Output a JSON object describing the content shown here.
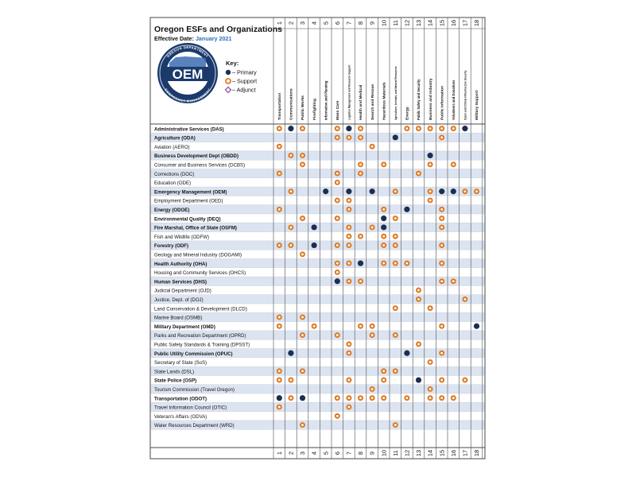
{
  "title": "Oregon ESFs and Organizations",
  "effective_label": "Effective Date:",
  "effective_date": "January 2021",
  "logo": {
    "arc_top": "OREGON DEPARTMENT",
    "arc_bottom": "EMERGENCY MANAGEMENT",
    "wordmark": "OEM"
  },
  "key": {
    "title": "Key:",
    "primary": "– Primary",
    "support": "– Support",
    "adjunct": "– Adjunct"
  },
  "colors": {
    "primary": "#1b2f52",
    "support": "#e07b22",
    "adjunct": "#9b59b6",
    "stripe": "#dce4f1",
    "grid": "#4a4a4a"
  },
  "esf_numbers": [
    "1",
    "2",
    "3",
    "4",
    "5",
    "6",
    "7",
    "8",
    "9",
    "10",
    "11",
    "12",
    "13",
    "14",
    "15",
    "16",
    "17",
    "18"
  ],
  "esf_names": [
    "Transportation",
    "Communications",
    "Public Works",
    "Firefighting",
    "Information and Planning",
    "Mass Care",
    "Logistics Management and Resource Support",
    "Health and Medical",
    "Search and Rescue",
    "Hazardous Materials",
    "Agriculture, Animals, and Natural Resources",
    "Energy",
    "Public Safety and Security",
    "Business and Industry",
    "Public Information",
    "Volunteers and Donations",
    "Cyber and Critical Infrastructure Security",
    "Military Support"
  ],
  "organizations": [
    {
      "name": "Administrative Services (DAS)",
      "bold": true,
      "marks": "S P S . . S P S . . . S S S S S P ."
    },
    {
      "name": "Agriculture (ODA)",
      "bold": true,
      "marks": ". . . . . S S S . . P . . . S . . ."
    },
    {
      "name": "Aviation (AERO)",
      "bold": false,
      "marks": "S . . . . . . . S . . . . . . . . ."
    },
    {
      "name": "Business Development Dept (OBDD)",
      "bold": true,
      "marks": ". S S . . . . . . . . . . P . . . ."
    },
    {
      "name": "Consumer and Business Services (DCBS)",
      "bold": false,
      "marks": ". . S . . . . S . S . . . S . S . ."
    },
    {
      "name": "Corrections (DOC)",
      "bold": false,
      "marks": "S . . . . S . S . . . . S . . . . ."
    },
    {
      "name": "Education (ODE)",
      "bold": false,
      "marks": ". . . . . S . . . . . . . . . . . ."
    },
    {
      "name": "Emergency Management (OEM)",
      "bold": true,
      "marks": ". S . . P . P . P . S . . S P P S S"
    },
    {
      "name": "Employment Department (OED)",
      "bold": false,
      "marks": ". . . . . S S . . . . . . S . . . ."
    },
    {
      "name": "Energy (ODOE)",
      "bold": true,
      "marks": "S . . . . . S . . S . P . . S . . ."
    },
    {
      "name": "Environmental Quality (DEQ)",
      "bold": true,
      "marks": ". . S . . S . . . P S . . . S . . ."
    },
    {
      "name": "Fire Marshal, Office of State (OSFM)",
      "bold": true,
      "marks": ". S . P . . S . S P . . . . S . . ."
    },
    {
      "name": "Fish and Wildlife (ODFW)",
      "bold": false,
      "marks": ". . . . . . S S . S S . . . . . . ."
    },
    {
      "name": "Forestry (ODF)",
      "bold": true,
      "marks": "S S . P . S S . . S S . . . S . . ."
    },
    {
      "name": "Geology and Mineral Industry (DOGAMI)",
      "bold": false,
      "marks": ". . S . . . . . . . . . . . . . . ."
    },
    {
      "name": "Health Authority (OHA)",
      "bold": true,
      "marks": ". . . . . S S P . S S S . . S . . ."
    },
    {
      "name": "Housing and Community Services (OHCS)",
      "bold": false,
      "marks": ". . . . . S . . . . . . . . . . . ."
    },
    {
      "name": "Human Services (DHS)",
      "bold": true,
      "marks": ". . . . . P S S . . . . . . S S . ."
    },
    {
      "name": "Judicial Department (OJD)",
      "bold": false,
      "marks": ". . . . . . . . . . . . S . . . . ."
    },
    {
      "name": "Justice, Dept. of (DOJ)",
      "bold": false,
      "marks": ". . . . . . . . . . . . S . . . S ."
    },
    {
      "name": "Land Conservation & Development (DLCD)",
      "bold": false,
      "marks": ". . . . . . . . . . S . . S . . . ."
    },
    {
      "name": "Marine Board (OSMB)",
      "bold": false,
      "marks": "S . S . . . . . . . . . . . . . . ."
    },
    {
      "name": "Military Department (OMD)",
      "bold": true,
      "marks": "S . . S . . . S S . . . . . S . . P"
    },
    {
      "name": "Parks and Recreation Department (OPRD)",
      "bold": false,
      "marks": ". . S . . S . . S . S . . . . . . ."
    },
    {
      "name": "Public Safety Standards & Training (DPSST)",
      "bold": false,
      "marks": ". . . . . . S . . . . . S . . . . ."
    },
    {
      "name": "Public Utility Commission (OPUC)",
      "bold": true,
      "marks": ". P . . . . S . . . . P . . S . . ."
    },
    {
      "name": "Secretary of State (SoS)",
      "bold": false,
      "marks": ". . . . . . . . . . . . . S . . . ."
    },
    {
      "name": "State Lands (DSL)",
      "bold": false,
      "marks": "S . S . . . . . . S S . . . . . . ."
    },
    {
      "name": "State Police (OSP)",
      "bold": true,
      "marks": "S S . . . . S . . S . . P . S . S ."
    },
    {
      "name": "Tourism Commission (Travel Oregon)",
      "bold": false,
      "marks": ". . . . . . . . S . . . . S . . . ."
    },
    {
      "name": "Transportation (ODOT)",
      "bold": true,
      "marks": "P S P . . S S S S S . S . S S S . ."
    },
    {
      "name": "Travel Information Council (OTIC)",
      "bold": false,
      "marks": "S . . . . . S . . . . . . . . . . ."
    },
    {
      "name": "Veteran's Affairs (ODVA)",
      "bold": false,
      "marks": ". . . . . S . . . . . . . . . . . ."
    },
    {
      "name": "Water Resources Department (WRD)",
      "bold": false,
      "marks": ". . S . . . . . . . S . . . . . . ."
    }
  ]
}
